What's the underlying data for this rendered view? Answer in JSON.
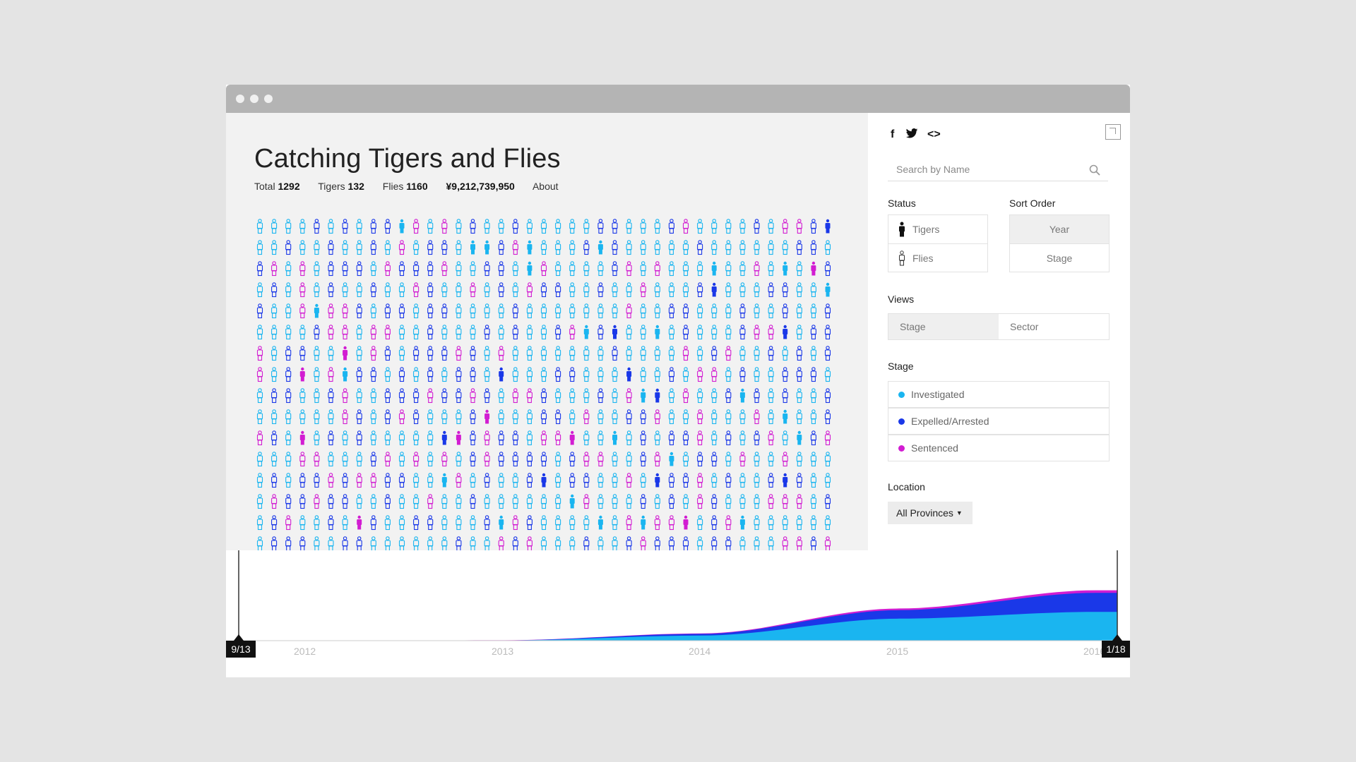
{
  "window": {
    "dots": 3
  },
  "header": {
    "title": "Catching Tigers and Flies",
    "stats": [
      {
        "label": "Total",
        "value": "1292"
      },
      {
        "label": "Tigers",
        "value": "132"
      },
      {
        "label": "Flies",
        "value": "1160"
      }
    ],
    "amount": "¥9,212,739,950",
    "about_label": "About"
  },
  "grid": {
    "columns": 41,
    "rows": 16,
    "colors": {
      "investigated": "#1ab5f0",
      "expelled": "#1a38e8",
      "sentenced": "#d21dd2"
    }
  },
  "share": {
    "facebook": "f",
    "twitter_icon": "twitter-bird-icon",
    "embed": "<>"
  },
  "search": {
    "placeholder": "Search by Name"
  },
  "filters": {
    "status_label": "Status",
    "status_options": [
      "Tigers",
      "Flies"
    ],
    "sort_label": "Sort Order",
    "sort_options": [
      "Year",
      "Stage"
    ],
    "sort_selected": "Year",
    "views_label": "Views",
    "view_options": [
      "Stage",
      "Sector"
    ],
    "view_selected": "Stage",
    "stage_label": "Stage",
    "stages": [
      {
        "label": "Investigated",
        "color": "#1ab5f0"
      },
      {
        "label": "Expelled/Arrested",
        "color": "#1a38e8"
      },
      {
        "label": "Sentenced",
        "color": "#d21dd2"
      }
    ],
    "location_label": "Location",
    "location_value": "All Provinces"
  },
  "timeline": {
    "start_label": "9/13",
    "end_label": "1/18",
    "year_ticks": [
      "2012",
      "2013",
      "2014",
      "2015",
      "2016"
    ]
  },
  "chart_data": {
    "type": "area",
    "x": [
      "2012",
      "2013",
      "2014",
      "2015",
      "2016"
    ],
    "series": [
      {
        "name": "Investigated",
        "values": [
          0,
          5,
          120,
          520,
          680
        ]
      },
      {
        "name": "Expelled/Arrested",
        "values": [
          0,
          3,
          40,
          200,
          450
        ]
      },
      {
        "name": "Sentenced",
        "values": [
          0,
          2,
          10,
          40,
          60
        ]
      }
    ]
  }
}
